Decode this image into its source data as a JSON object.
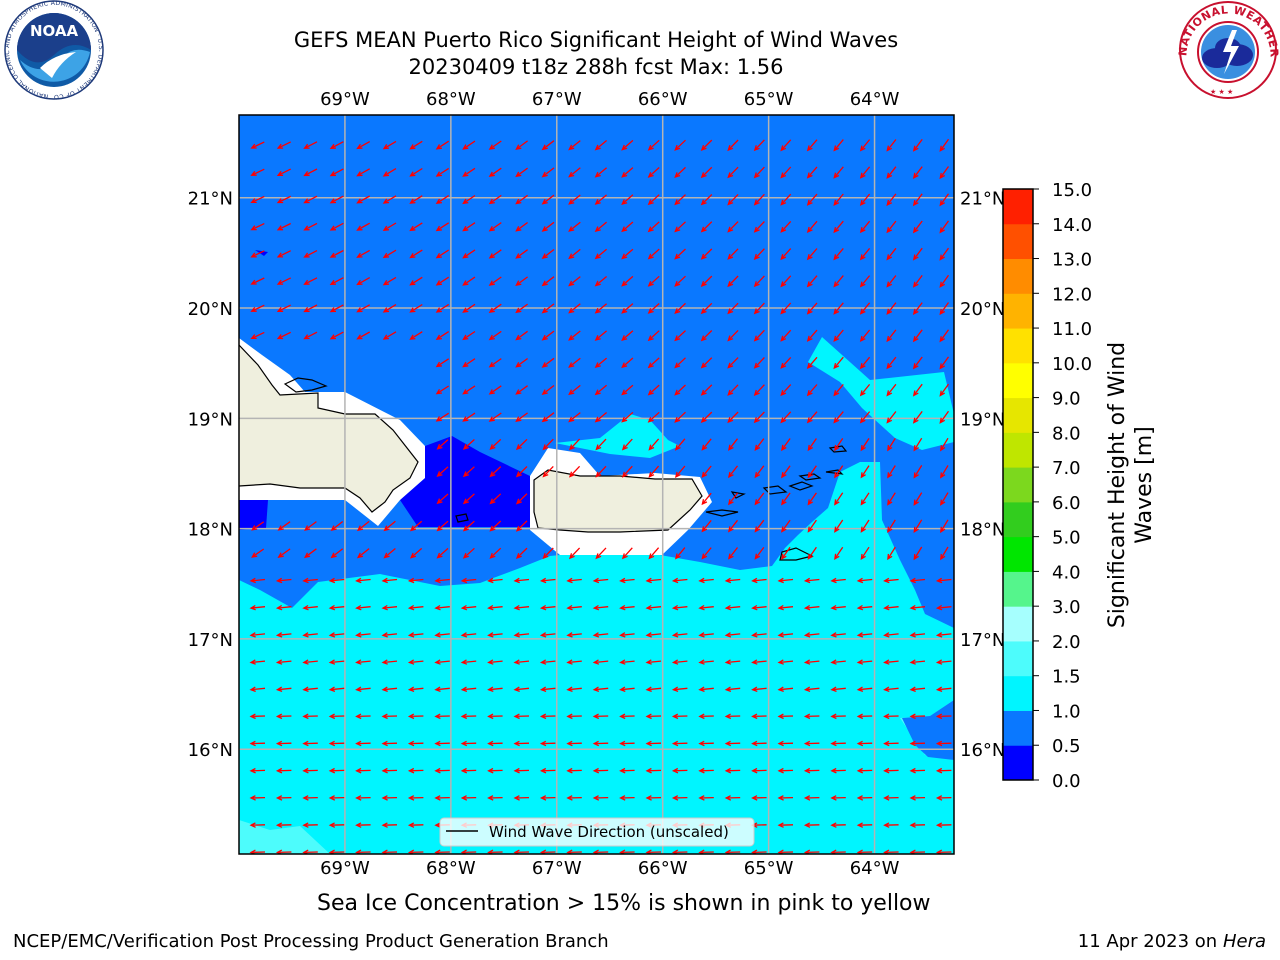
{
  "title": {
    "line1": "GEFS MEAN Puerto Rico Significant Height of Wind Waves",
    "line2": "20230409 t18z 288h fcst   Max: 1.56"
  },
  "logos": {
    "left": "NOAA",
    "left_ring": "NATIONAL OCEANIC AND ATMOSPHERIC ADMINISTRATION · U.S. DEPARTMENT OF COMMERCE",
    "right_ring": "NATIONAL WEATHER SERVICE"
  },
  "axes": {
    "lon_labels": [
      "69°W",
      "68°W",
      "67°W",
      "66°W",
      "65°W",
      "64°W"
    ],
    "lon_values": [
      -69,
      -68,
      -67,
      -66,
      -65,
      -64
    ],
    "lat_labels": [
      "16°N",
      "17°N",
      "18°N",
      "19°N",
      "20°N",
      "21°N"
    ],
    "lat_values": [
      16,
      17,
      18,
      19,
      20,
      21
    ],
    "lon_range": [
      -70,
      -63.25
    ],
    "lat_range": [
      15.05,
      21.75
    ],
    "grid": true
  },
  "legend": {
    "label": "Wind Wave Direction (unscaled)",
    "placement": "bottom-center"
  },
  "colorbar": {
    "label": "Significant Height of Wind Waves [m]",
    "tick_labels": [
      "0.0",
      "0.5",
      "1.0",
      "1.5",
      "2.0",
      "3.0",
      "4.0",
      "5.0",
      "6.0",
      "7.0",
      "8.0",
      "9.0",
      "10.0",
      "11.0",
      "12.0",
      "13.0",
      "14.0",
      "15.0"
    ],
    "colors": [
      "#0000ff",
      "#0a78ff",
      "#00f5ff",
      "#4dfcfc",
      "#a6fffe",
      "#55f58c",
      "#00e600",
      "#32cd1e",
      "#7cd81e",
      "#bfe600",
      "#e6e600",
      "#ffff00",
      "#ffe100",
      "#ffb300",
      "#ff8c00",
      "#ff5000",
      "#ff2000"
    ]
  },
  "field_colors": {
    "band_0_0_5": "#0000ff",
    "band_0_5_1_0": "#0a78ff",
    "band_1_0_1_5": "#00f5ff",
    "band_1_5_2_0": "#4dfcfc",
    "land": "#efefde",
    "no_data": "#ffffff",
    "arrows": "#ff0000"
  },
  "caption": "Sea Ice Concentration > 15% is shown in pink to yellow",
  "footer": {
    "left": "NCEP/EMC/Verification Post Processing Product Generation Branch",
    "right_prefix": "11 Apr 2023 on ",
    "right_host": "Hera"
  }
}
